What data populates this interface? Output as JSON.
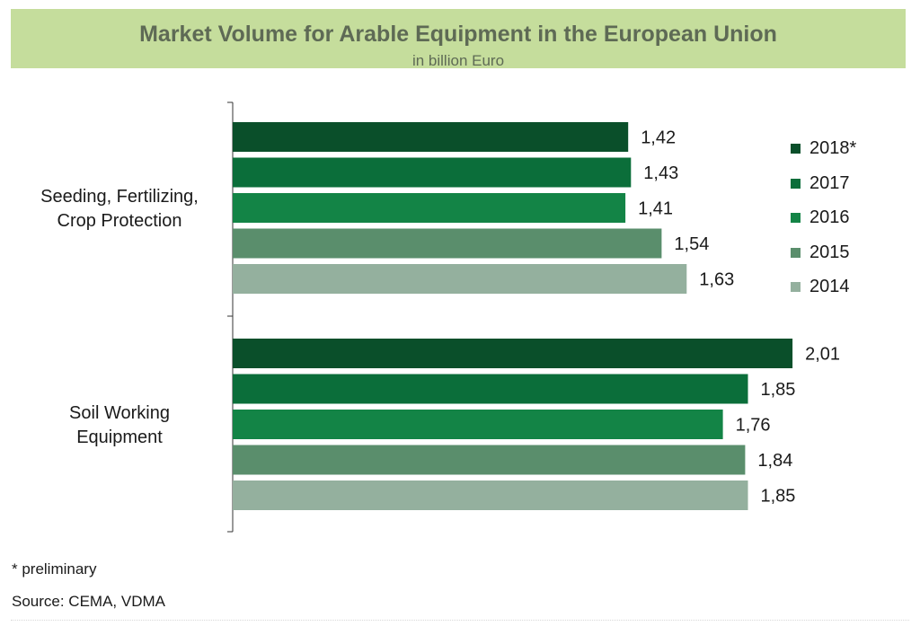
{
  "header": {
    "title": "Market Volume for Arable Equipment in the European Union",
    "subtitle": "in billion Euro"
  },
  "footer": {
    "footnote": "* preliminary",
    "source": "Source: CEMA, VDMA"
  },
  "colors": {
    "2018*": "#0a4f2a",
    "2017": "#0b6e3a",
    "2016": "#138446",
    "2015": "#5a8e6c",
    "2014": "#94b09e"
  },
  "chart_data": {
    "type": "bar",
    "orientation": "horizontal",
    "title": "Market Volume for Arable Equipment in the European Union",
    "subtitle": "in billion Euro",
    "categories": [
      [
        "Seeding, Fertilizing,",
        "Crop Protection"
      ],
      [
        "Soil Working",
        "Equipment"
      ]
    ],
    "series": [
      {
        "name": "2018*",
        "values": [
          1.42,
          2.01
        ],
        "labels": [
          "1,42",
          "2,01"
        ]
      },
      {
        "name": "2017",
        "values": [
          1.43,
          1.85
        ],
        "labels": [
          "1,43",
          "1,85"
        ]
      },
      {
        "name": "2016",
        "values": [
          1.41,
          1.76
        ],
        "labels": [
          "1,41",
          "1,76"
        ]
      },
      {
        "name": "2015",
        "values": [
          1.54,
          1.84
        ],
        "labels": [
          "1,54",
          "1,84"
        ]
      },
      {
        "name": "2014",
        "values": [
          1.63,
          1.85
        ],
        "labels": [
          "1,63",
          "1,85"
        ]
      }
    ],
    "xlim": [
      0,
      2.3
    ],
    "grid": false,
    "legend": "right"
  }
}
